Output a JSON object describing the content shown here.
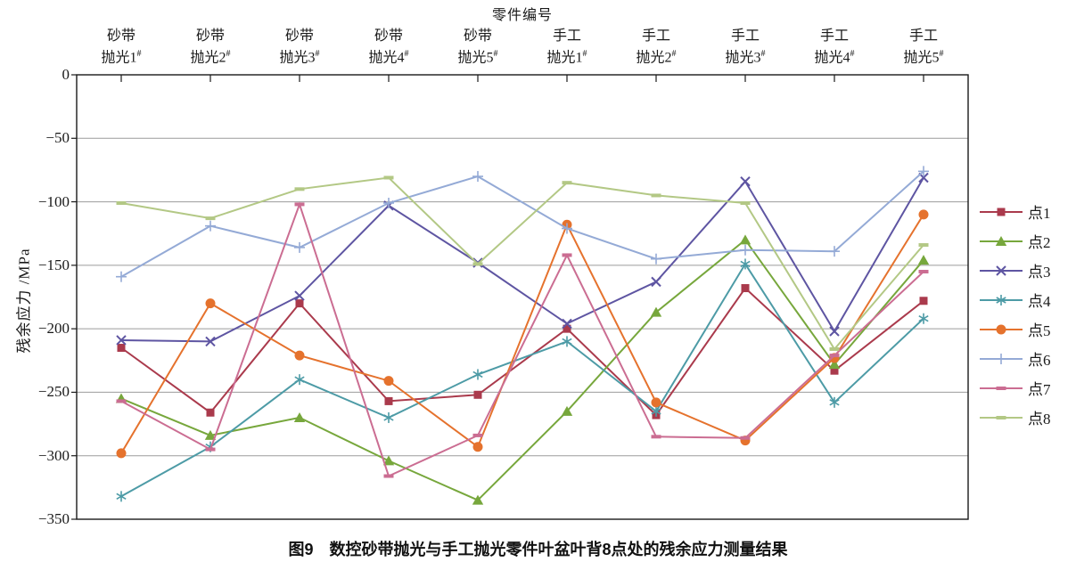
{
  "chart_data": {
    "type": "line",
    "title": "零件编号",
    "ylabel": "残余应力 /MPa",
    "caption": "图9　数控砂带抛光与手工抛光零件叶盆叶背8点处的残余应力测量结果",
    "ylim": [
      -350,
      0
    ],
    "grid": true,
    "legend_position": "right",
    "y_ticks": [
      0,
      -50,
      -100,
      -150,
      -200,
      -250,
      -300,
      -350
    ],
    "y_tick_labels": [
      "0",
      "−50",
      "−100",
      "−150",
      "−200",
      "−250",
      "−300",
      "−350"
    ],
    "categories": [
      {
        "line1": "砂带",
        "line2": "抛光1",
        "sup": "#"
      },
      {
        "line1": "砂带",
        "line2": "抛光2",
        "sup": "#"
      },
      {
        "line1": "砂带",
        "line2": "抛光3",
        "sup": "#"
      },
      {
        "line1": "砂带",
        "line2": "抛光4",
        "sup": "#"
      },
      {
        "line1": "砂带",
        "line2": "抛光5",
        "sup": "#"
      },
      {
        "line1": "手工",
        "line2": "抛光1",
        "sup": "#"
      },
      {
        "line1": "手工",
        "line2": "抛光2",
        "sup": "#"
      },
      {
        "line1": "手工",
        "line2": "抛光3",
        "sup": "#"
      },
      {
        "line1": "手工",
        "line2": "抛光4",
        "sup": "#"
      },
      {
        "line1": "手工",
        "line2": "抛光5",
        "sup": "#"
      }
    ],
    "series": [
      {
        "name": "点1",
        "marker": "square",
        "color": "#AA3A4C",
        "values": [
          -215,
          -266,
          -180,
          -257,
          -252,
          -200,
          -268,
          -168,
          -233,
          -178
        ]
      },
      {
        "name": "点2",
        "marker": "triangle",
        "color": "#77A73C",
        "values": [
          -255,
          -284,
          -270,
          -304,
          -335,
          -265,
          -187,
          -130,
          -228,
          -146
        ]
      },
      {
        "name": "点3",
        "marker": "x",
        "color": "#5E55A2",
        "values": [
          -209,
          -210,
          -174,
          -103,
          -148,
          -196,
          -163,
          -84,
          -202,
          -81
        ]
      },
      {
        "name": "点4",
        "marker": "asterisk",
        "color": "#4D9BA6",
        "values": [
          -332,
          -293,
          -240,
          -270,
          -236,
          -210,
          -265,
          -149,
          -258,
          -192
        ]
      },
      {
        "name": "点5",
        "marker": "circle",
        "color": "#E5722D",
        "values": [
          -298,
          -180,
          -221,
          -241,
          -293,
          -118,
          -258,
          -288,
          -223,
          -110
        ]
      },
      {
        "name": "点6",
        "marker": "plus",
        "color": "#94AAD6",
        "values": [
          -159,
          -119,
          -136,
          -101,
          -80,
          -121,
          -145,
          -138,
          -139,
          -76
        ]
      },
      {
        "name": "点7",
        "marker": "dash",
        "color": "#CB6D92",
        "values": [
          -257,
          -295,
          -102,
          -316,
          -284,
          -142,
          -285,
          -286,
          -221,
          -155
        ]
      },
      {
        "name": "点8",
        "marker": "dash",
        "color": "#B3C885",
        "values": [
          -101,
          -113,
          -90,
          -81,
          -149,
          -85,
          -95,
          -101,
          -216,
          -134
        ]
      }
    ],
    "colors": {
      "grid": "#9B9B9B",
      "axis": "#1A1A1A",
      "background": "#FFFFFF"
    }
  }
}
